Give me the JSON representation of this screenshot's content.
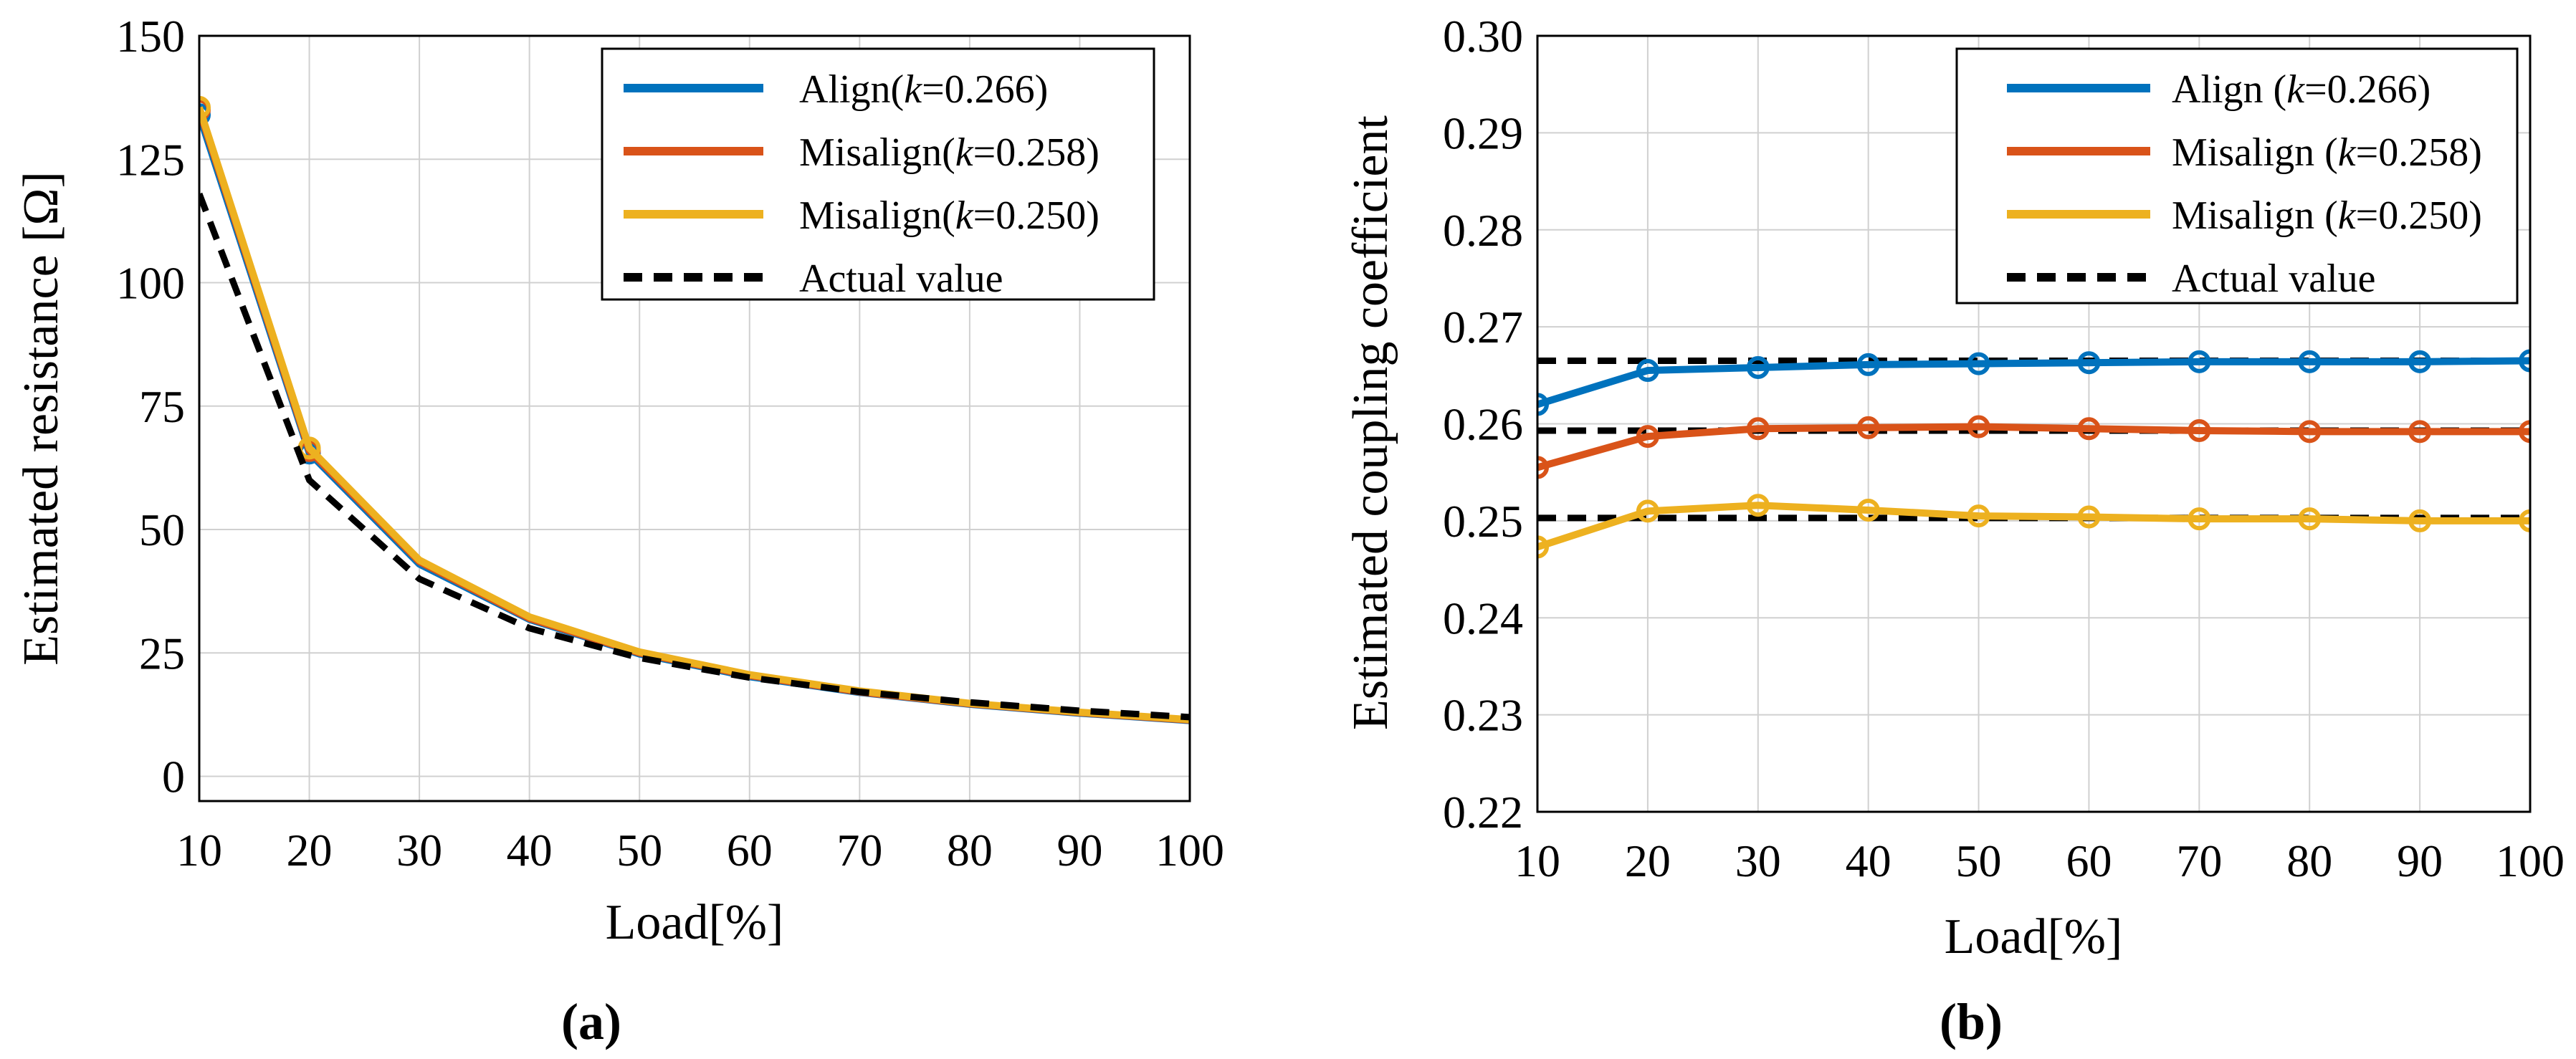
{
  "figure": {
    "panel_a_label": "(a)",
    "panel_b_label": "(b)"
  },
  "chart_data": [
    {
      "type": "line",
      "panel": "a",
      "xlabel": "Load[%]",
      "ylabel": "Estimated resistance [Ω]",
      "x": [
        10,
        20,
        30,
        40,
        50,
        60,
        70,
        80,
        90,
        100
      ],
      "xlim": [
        10,
        100
      ],
      "ylim": [
        -5,
        150
      ],
      "xticks": [
        10,
        20,
        30,
        40,
        50,
        60,
        70,
        80,
        90,
        100
      ],
      "yticks": [
        0,
        25,
        50,
        75,
        100,
        125,
        150
      ],
      "grid": true,
      "legend_position": "top-right",
      "series": [
        {
          "name_prefix": "Align(",
          "k_symbol": "k",
          "name_suffix": "=0.266)",
          "color": "#0072BD",
          "style": "solid",
          "markers": [
            0,
            1
          ],
          "values": [
            134,
            65.5,
            43,
            31.8,
            24.8,
            20.2,
            17,
            14.6,
            12.8,
            11.3
          ]
        },
        {
          "name_prefix": "Misalign(",
          "k_symbol": "k",
          "name_suffix": "=0.258)",
          "color": "#D95319",
          "style": "solid",
          "markers": [
            0,
            1
          ],
          "values": [
            135,
            66,
            43.5,
            32,
            25,
            20.4,
            17.1,
            14.7,
            12.9,
            11.4
          ]
        },
        {
          "name_prefix": "Misalign(",
          "k_symbol": "k",
          "name_suffix": "=0.250)",
          "color": "#EDB120",
          "style": "solid",
          "markers": [
            0,
            1
          ],
          "values": [
            135.5,
            66.5,
            43.8,
            32.3,
            25.2,
            20.6,
            17.3,
            14.8,
            13,
            11.5
          ]
        },
        {
          "name_prefix": "Actual value",
          "k_symbol": "",
          "name_suffix": "",
          "color": "#000000",
          "style": "dashed",
          "markers": [],
          "values": [
            118,
            60,
            40,
            30,
            24,
            20,
            17.1,
            15,
            13.3,
            12
          ]
        }
      ]
    },
    {
      "type": "line",
      "panel": "b",
      "xlabel": "Load[%]",
      "ylabel": "Estimated coupling coefficient",
      "x": [
        10,
        20,
        30,
        40,
        50,
        60,
        70,
        80,
        90,
        100
      ],
      "xlim": [
        10,
        100
      ],
      "ylim": [
        0.22,
        0.3
      ],
      "xticks": [
        10,
        20,
        30,
        40,
        50,
        60,
        70,
        80,
        90,
        100
      ],
      "yticks": [
        0.22,
        0.23,
        0.24,
        0.25,
        0.26,
        0.27,
        0.28,
        0.29,
        0.3
      ],
      "grid": true,
      "legend_position": "top-right",
      "series": [
        {
          "name_prefix": "Align (",
          "k_symbol": "k",
          "name_suffix": "=0.266)",
          "color": "#0072BD",
          "style": "solid",
          "markers": [
            0,
            1,
            2,
            3,
            4,
            5,
            6,
            7,
            8,
            9
          ],
          "values": [
            0.262,
            0.2655,
            0.2658,
            0.2661,
            0.2662,
            0.2663,
            0.2664,
            0.2664,
            0.2664,
            0.2665
          ]
        },
        {
          "name_prefix": "Misalign (",
          "k_symbol": "k",
          "name_suffix": "=0.258)",
          "color": "#D95319",
          "style": "solid",
          "markers": [
            0,
            1,
            2,
            3,
            4,
            5,
            6,
            7,
            8,
            9
          ],
          "values": [
            0.2555,
            0.2587,
            0.2595,
            0.2596,
            0.2597,
            0.2595,
            0.2593,
            0.2592,
            0.2592,
            0.2592
          ]
        },
        {
          "name_prefix": "Misalign (",
          "k_symbol": "k",
          "name_suffix": "=0.250)",
          "color": "#EDB120",
          "style": "solid",
          "markers": [
            0,
            1,
            2,
            3,
            4,
            5,
            6,
            7,
            8,
            9
          ],
          "values": [
            0.2473,
            0.251,
            0.2516,
            0.2511,
            0.2505,
            0.2504,
            0.2502,
            0.2502,
            0.25,
            0.25
          ]
        },
        {
          "name_prefix": "Actual value",
          "k_symbol": "",
          "name_suffix": "",
          "color": "#000000",
          "style": "dashed",
          "markers": [],
          "values": [
            0.2665,
            0.2665,
            0.2665,
            0.2665,
            0.2665,
            0.2665,
            0.2665,
            0.2665,
            0.2665,
            0.2665
          ],
          "extra_lines": [
            [
              0.2593,
              0.2593,
              0.2593,
              0.2593,
              0.2593,
              0.2593,
              0.2593,
              0.2593,
              0.2593,
              0.2593
            ],
            [
              0.2503,
              0.2503,
              0.2503,
              0.2503,
              0.2503,
              0.2503,
              0.2503,
              0.2503,
              0.2503,
              0.2503
            ]
          ]
        }
      ]
    }
  ]
}
